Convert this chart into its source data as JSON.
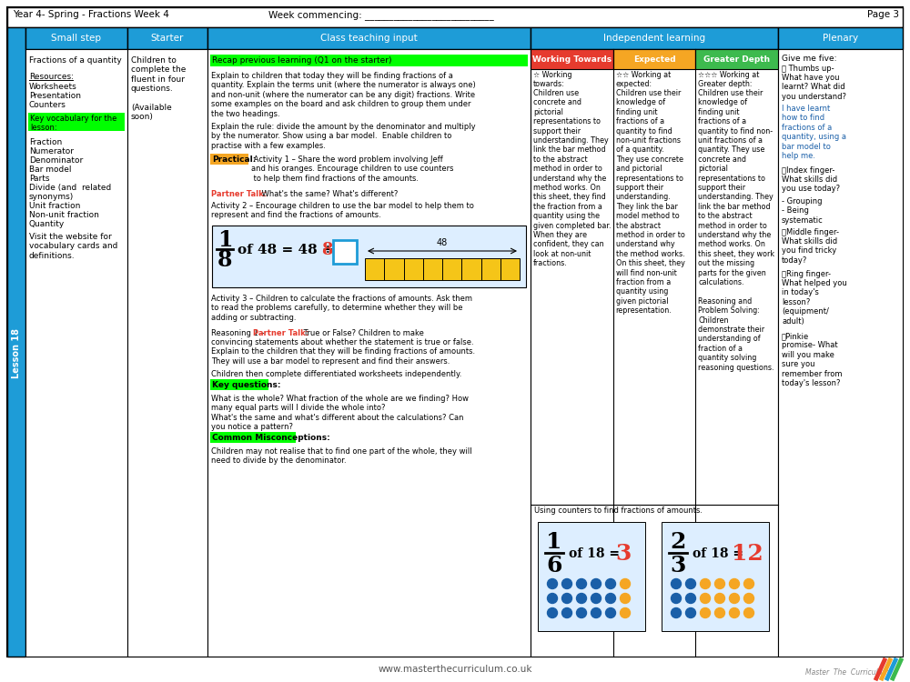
{
  "title_left": "Year 4- Spring - Fractions Week 4",
  "title_center": "Week commencing: ___________________________",
  "title_right": "Page 3",
  "header_color": "#1e9cd7",
  "sidebar_color": "#1e9cd7",
  "background_color": "#ffffff",
  "highlight_green": "#00ff00",
  "highlight_orange": "#f5a623",
  "highlight_red": "#e63b2e",
  "ind_subheader_colors": [
    "#e63b2e",
    "#f5a623",
    "#3dba4e"
  ],
  "footer_text": "www.masterthecurriculum.co.uk"
}
